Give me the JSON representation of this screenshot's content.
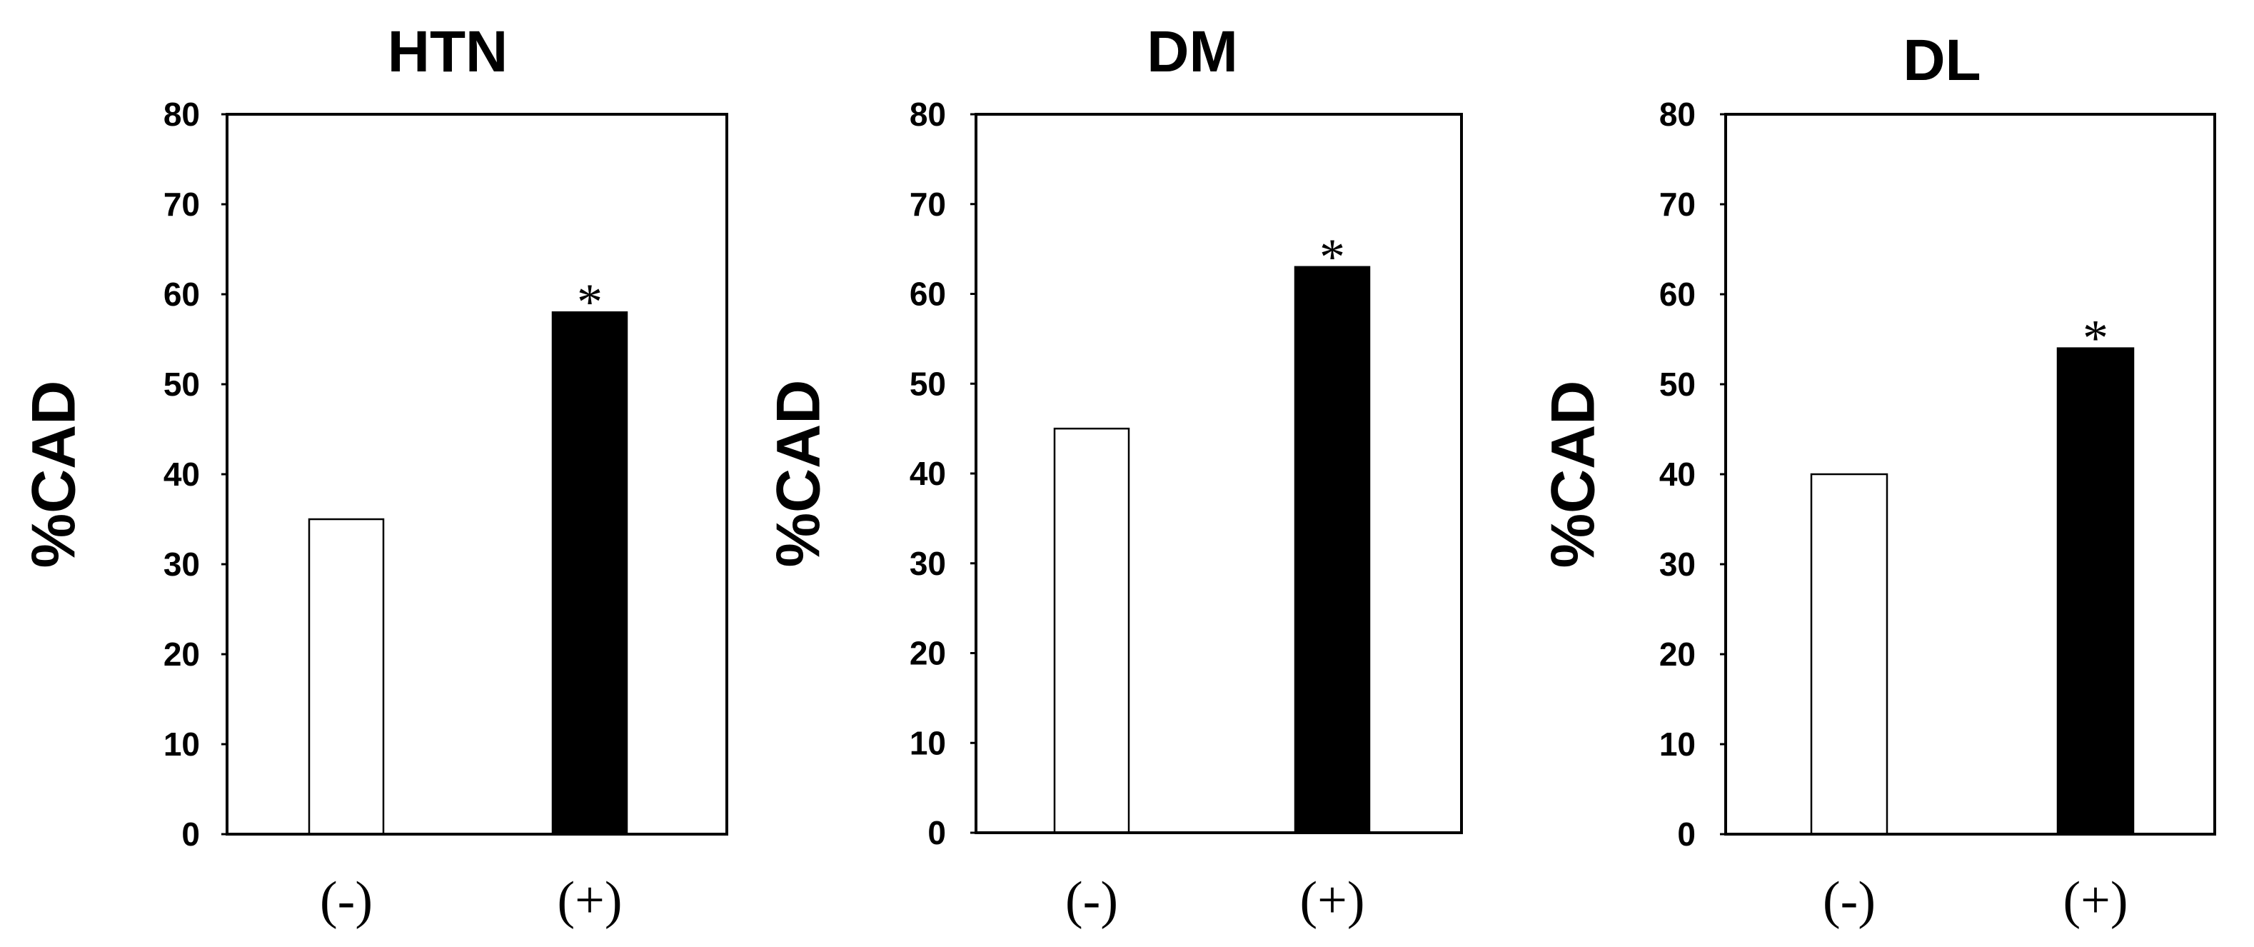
{
  "chart_data": [
    {
      "type": "bar",
      "title": "HTN",
      "xlabel": "",
      "ylabel": "%CAD",
      "ylim": [
        0,
        80
      ],
      "yticks": [
        0,
        10,
        20,
        30,
        40,
        50,
        60,
        70,
        80
      ],
      "ytick_labels": [
        "0",
        "10",
        "20",
        "30",
        "40",
        "50",
        "60",
        "70",
        "80"
      ],
      "categories": [
        "(-)",
        "(+)"
      ],
      "values": [
        35,
        58
      ],
      "bar_colors": [
        "#ffffff",
        "#000000"
      ],
      "annotations": [
        {
          "category": "(+)",
          "text": "*"
        }
      ],
      "grid": false
    },
    {
      "type": "bar",
      "title": "DM",
      "xlabel": "",
      "ylabel": "%CAD",
      "ylim": [
        0,
        80
      ],
      "yticks": [
        0,
        10,
        20,
        30,
        40,
        50,
        60,
        70,
        80
      ],
      "ytick_labels": [
        "0",
        "10",
        "20",
        "30",
        "40",
        "50",
        "60",
        "70",
        "80"
      ],
      "categories": [
        "(-)",
        "(+)"
      ],
      "values": [
        45,
        63
      ],
      "bar_colors": [
        "#ffffff",
        "#000000"
      ],
      "annotations": [
        {
          "category": "(+)",
          "text": "*"
        }
      ],
      "grid": false
    },
    {
      "type": "bar",
      "title": "DL",
      "xlabel": "",
      "ylabel": "%CAD",
      "ylim": [
        0,
        80
      ],
      "yticks": [
        0,
        10,
        20,
        30,
        40,
        50,
        60,
        70,
        80
      ],
      "ytick_labels": [
        "0",
        "10",
        "20",
        "30",
        "40",
        "50",
        "60",
        "70",
        "80"
      ],
      "categories": [
        "(-)",
        "(+)"
      ],
      "values": [
        40,
        54
      ],
      "bar_colors": [
        "#ffffff",
        "#000000"
      ],
      "annotations": [
        {
          "category": "(+)",
          "text": "*"
        }
      ],
      "grid": false
    }
  ]
}
